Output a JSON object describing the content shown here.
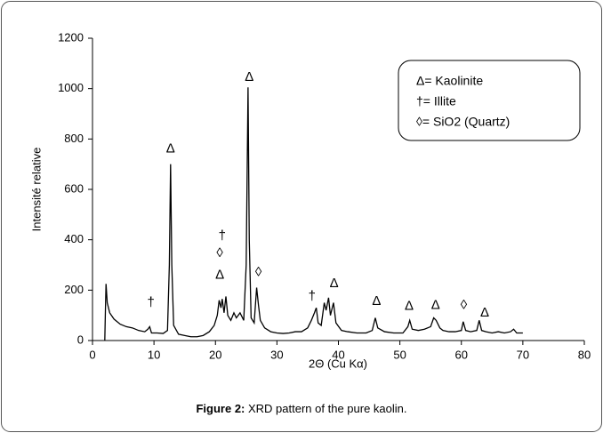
{
  "chart_data": {
    "type": "line",
    "x_label": "2Θ (Cu Kα)",
    "y_label": "Intensité relative",
    "caption_label": "Figure 2:",
    "caption_text": " XRD pattern of the pure kaolin.",
    "color": "#000000",
    "xlim": [
      0,
      80
    ],
    "xticks": [
      0,
      10,
      20,
      30,
      40,
      50,
      60,
      70,
      80
    ],
    "ylim": [
      0,
      1200
    ],
    "yticks": [
      0,
      200,
      400,
      600,
      800,
      1000,
      1200
    ],
    "grid": false,
    "legend": [
      "Δ= Kaolinite",
      "†= Illite",
      "◊= SiO2 (Quartz)"
    ],
    "annotations": [
      {
        "text": "Δ",
        "x": 12.7,
        "y": 760
      },
      {
        "text": "†",
        "x": 9.5,
        "y": 150
      },
      {
        "text": "Δ",
        "x": 20.7,
        "y": 260
      },
      {
        "text": "◊",
        "x": 20.7,
        "y": 345
      },
      {
        "text": "†",
        "x": 21.1,
        "y": 415
      },
      {
        "text": "Δ",
        "x": 25.5,
        "y": 1045
      },
      {
        "text": "◊",
        "x": 27.0,
        "y": 270
      },
      {
        "text": "†",
        "x": 35.7,
        "y": 175
      },
      {
        "text": "Δ",
        "x": 39.3,
        "y": 225
      },
      {
        "text": "Δ",
        "x": 46.2,
        "y": 155
      },
      {
        "text": "Δ",
        "x": 51.5,
        "y": 135
      },
      {
        "text": "Δ",
        "x": 55.8,
        "y": 140
      },
      {
        "text": "◊",
        "x": 60.4,
        "y": 140
      },
      {
        "text": "Δ",
        "x": 63.8,
        "y": 110
      }
    ],
    "x": [
      2.0,
      2.1,
      2.2,
      2.4,
      2.8,
      3.5,
      4.5,
      5.5,
      6.5,
      7.5,
      8.5,
      9.0,
      9.3,
      9.6,
      10.5,
      11.5,
      12.2,
      12.5,
      12.7,
      12.9,
      13.2,
      14,
      15,
      16,
      17,
      18,
      19,
      19.8,
      20.3,
      20.6,
      20.9,
      21.1,
      21.4,
      21.7,
      22.0,
      22.5,
      23.0,
      23.4,
      24.0,
      24.6,
      25.0,
      25.3,
      25.5,
      25.8,
      26.3,
      26.7,
      27.0,
      27.3,
      28,
      29,
      30,
      31,
      32,
      33,
      34,
      35,
      35.6,
      36.1,
      36.4,
      36.7,
      37.2,
      37.7,
      38.0,
      38.4,
      38.7,
      39.2,
      39.6,
      40.5,
      41.5,
      43,
      44.5,
      45.5,
      46.0,
      46.4,
      47.5,
      49,
      50.5,
      51.3,
      51.6,
      52,
      53,
      54,
      55,
      55.5,
      55.9,
      56.5,
      57,
      58,
      59,
      60,
      60.3,
      60.7,
      61.5,
      62.5,
      62.9,
      63.3,
      64,
      65,
      66,
      67,
      68,
      68.5,
      69,
      70
    ],
    "values": [
      0,
      120,
      225,
      150,
      110,
      85,
      65,
      55,
      50,
      40,
      35,
      45,
      55,
      30,
      30,
      28,
      40,
      300,
      700,
      300,
      60,
      25,
      20,
      15,
      15,
      20,
      35,
      60,
      100,
      160,
      130,
      165,
      110,
      175,
      100,
      80,
      110,
      90,
      110,
      80,
      300,
      1005,
      400,
      90,
      70,
      210,
      140,
      80,
      50,
      35,
      30,
      28,
      30,
      35,
      35,
      50,
      80,
      110,
      130,
      70,
      60,
      150,
      120,
      170,
      100,
      150,
      70,
      40,
      35,
      30,
      30,
      40,
      90,
      50,
      35,
      30,
      30,
      55,
      80,
      45,
      40,
      45,
      55,
      90,
      80,
      50,
      40,
      35,
      35,
      40,
      75,
      40,
      35,
      40,
      80,
      40,
      35,
      30,
      35,
      30,
      35,
      45,
      30,
      30
    ]
  }
}
